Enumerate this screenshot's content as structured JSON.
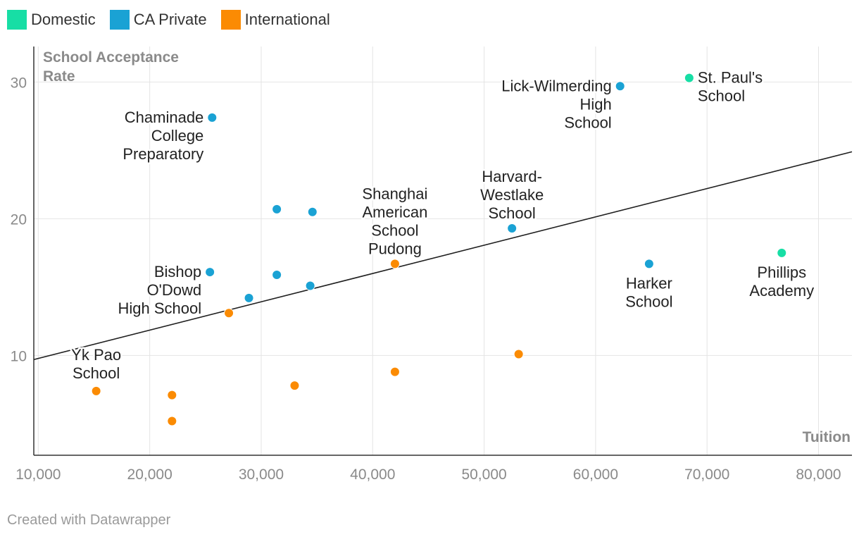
{
  "legend": [
    {
      "label": "Domestic",
      "color": "#17dea5"
    },
    {
      "label": "CA Private",
      "color": "#1aa2d4"
    },
    {
      "label": "International",
      "color": "#fb8b03"
    }
  ],
  "footer": {
    "credit": "Created with Datawrapper"
  },
  "chart_data": {
    "type": "scatter",
    "title": "",
    "xlabel": "Tuition",
    "ylabel": "School Acceptance Rate",
    "xlim": [
      9600,
      83000
    ],
    "ylim": [
      2.7,
      32.6
    ],
    "xticks": [
      10000,
      20000,
      30000,
      40000,
      50000,
      60000,
      70000,
      80000
    ],
    "xtick_labels": [
      "10,000",
      "20,000",
      "30,000",
      "40,000",
      "50,000",
      "60,000",
      "70,000",
      "80,000"
    ],
    "yticks": [
      10,
      20,
      30
    ],
    "ytick_labels": [
      "10",
      "20",
      "30"
    ],
    "grid": true,
    "trendline": {
      "x": [
        9600,
        83000
      ],
      "y": [
        9.7,
        24.9
      ]
    },
    "series": [
      {
        "name": "Domestic",
        "color": "#17dea5",
        "points": [
          {
            "x": 68400,
            "y": 30.3,
            "label": [
              "St. Paul's",
              "School"
            ],
            "anchor": "start"
          },
          {
            "x": 76700,
            "y": 17.5,
            "label": [
              "Phillips",
              "Academy"
            ],
            "anchor": "middle"
          }
        ]
      },
      {
        "name": "CA Private",
        "color": "#1aa2d4",
        "points": [
          {
            "x": 25600,
            "y": 27.4,
            "label": [
              "Chaminade",
              "College",
              "Preparatory"
            ],
            "anchor": "end"
          },
          {
            "x": 62200,
            "y": 29.7,
            "label": [
              "Lick-Wilmerding",
              "High",
              "School"
            ],
            "anchor": "end"
          },
          {
            "x": 31400,
            "y": 20.7
          },
          {
            "x": 34600,
            "y": 20.5
          },
          {
            "x": 52500,
            "y": 19.3,
            "label": [
              "Harvard-",
              "Westlake",
              "School"
            ],
            "anchor": "middle"
          },
          {
            "x": 25400,
            "y": 16.1,
            "label": [
              "Bishop",
              "O'Dowd",
              "High School"
            ],
            "anchor": "end"
          },
          {
            "x": 31400,
            "y": 15.9
          },
          {
            "x": 34400,
            "y": 15.1
          },
          {
            "x": 28900,
            "y": 14.2
          },
          {
            "x": 64800,
            "y": 16.7,
            "label": [
              "Harker",
              "School"
            ],
            "anchor": "middle"
          }
        ]
      },
      {
        "name": "International",
        "color": "#fb8b03",
        "points": [
          {
            "x": 42000,
            "y": 16.7,
            "label": [
              "Shanghai",
              "American",
              "School",
              "Pudong"
            ],
            "anchor": "middle"
          },
          {
            "x": 27100,
            "y": 13.1
          },
          {
            "x": 53100,
            "y": 10.1
          },
          {
            "x": 42000,
            "y": 8.8
          },
          {
            "x": 33000,
            "y": 7.8
          },
          {
            "x": 15200,
            "y": 7.4,
            "label": [
              "Yk Pao",
              "School"
            ],
            "anchor": "middle"
          },
          {
            "x": 22000,
            "y": 7.1
          },
          {
            "x": 22000,
            "y": 5.2
          }
        ]
      }
    ]
  }
}
